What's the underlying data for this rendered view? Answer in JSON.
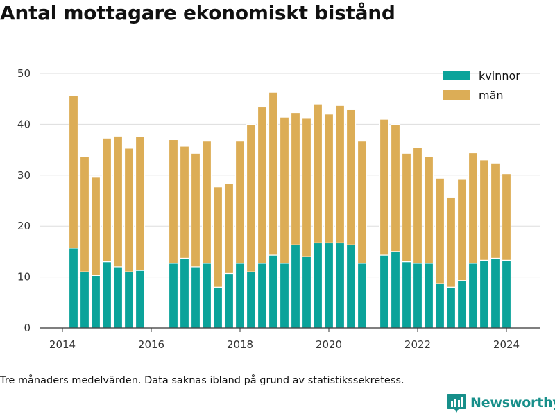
{
  "title": "Antal mottagare ekonomiskt bistånd",
  "footnote": "Tre månaders medelvärden. Data saknas ibland på grund av statistikssekretess.",
  "brand": {
    "name": "Newsworthy",
    "icon": "bar-chart-logo-icon",
    "color": "#178f8a"
  },
  "colors": {
    "kvinnor": "#0ba39a",
    "man": "#dcad56",
    "grid": "#dddddd",
    "axis": "#333333"
  },
  "chart_data": {
    "type": "bar",
    "stacked": true,
    "title": "Antal mottagare ekonomiskt bistånd",
    "xlabel": "",
    "ylabel": "",
    "ylim": [
      0,
      50
    ],
    "yticks": [
      0,
      10,
      20,
      30,
      40,
      50
    ],
    "xlim": [
      2013.5,
      2024.75
    ],
    "xticks": [
      2014,
      2016,
      2018,
      2020,
      2022,
      2024
    ],
    "grid": true,
    "legend_position": "top-right",
    "x": [
      2014.25,
      2014.5,
      2014.75,
      2015.0,
      2015.25,
      2015.5,
      2015.75,
      2016.5,
      2016.75,
      2017.0,
      2017.25,
      2017.5,
      2017.75,
      2018.0,
      2018.25,
      2018.5,
      2018.75,
      2019.0,
      2019.25,
      2019.5,
      2019.75,
      2020.0,
      2020.25,
      2020.5,
      2020.75,
      2021.25,
      2021.5,
      2021.75,
      2022.0,
      2022.25,
      2022.5,
      2022.75,
      2023.0,
      2023.25,
      2023.5,
      2023.75,
      2024.0
    ],
    "series": [
      {
        "name": "kvinnor",
        "values": [
          15.7,
          11.0,
          10.3,
          13.0,
          12.0,
          11.0,
          11.3,
          12.7,
          13.7,
          12.0,
          12.7,
          8.0,
          10.7,
          12.7,
          11.0,
          12.7,
          14.3,
          12.7,
          16.3,
          14.0,
          16.7,
          16.7,
          16.7,
          16.3,
          12.7,
          14.3,
          15.0,
          13.0,
          12.7,
          12.7,
          8.7,
          8.0,
          9.3,
          12.7,
          13.3,
          13.7,
          13.3
        ]
      },
      {
        "name": "män",
        "values": [
          30.0,
          22.7,
          19.3,
          24.3,
          25.7,
          24.3,
          26.3,
          24.3,
          22.0,
          22.3,
          24.0,
          19.7,
          17.7,
          24.0,
          29.0,
          30.7,
          32.0,
          28.7,
          26.0,
          27.3,
          27.3,
          25.3,
          27.0,
          26.7,
          24.0,
          26.7,
          25.0,
          21.3,
          22.7,
          21.0,
          20.7,
          17.7,
          20.0,
          21.7,
          19.7,
          18.7,
          17.0
        ]
      }
    ]
  }
}
